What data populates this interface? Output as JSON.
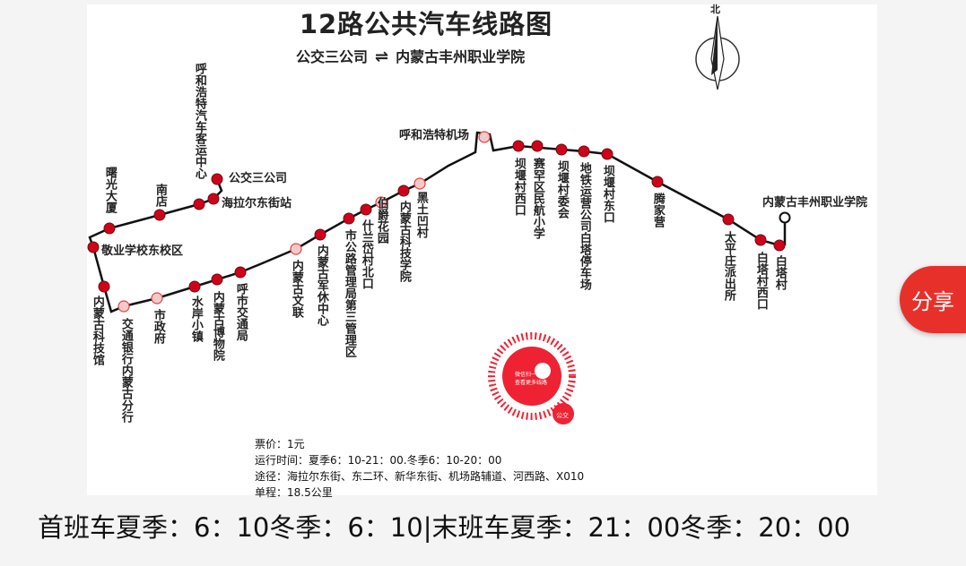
{
  "map": {
    "title": "12路公共汽车线路图",
    "from": "公交三公司",
    "to": "内蒙古丰州职业学院",
    "direction_symbol": "⇌",
    "north_label": "北",
    "line_color": "#111111",
    "station_color": "#d0021b",
    "stations": [
      "公交三公司",
      "海拉尔东街站",
      "呼和浩特汽车客运中心",
      "南店",
      "曙光大厦",
      "敬业学校东校区",
      "内蒙古科技馆",
      "交通银行内蒙古分行",
      "市政府",
      "水岸小镇",
      "内蒙古博物院",
      "呼市交通局",
      "内蒙古文联",
      "内蒙古军休中心",
      "市公路管理局第三管理区",
      "什兰岱村北口",
      "伯爵花园",
      "内蒙古科技学院",
      "黑土凹村",
      "呼和浩特机场",
      "坝堰村西口",
      "赛罕区民航小学",
      "坝堰村委会",
      "地铁运营公司白塔停车场",
      "坝堰村东口",
      "腾家营",
      "太平庄派出所",
      "白塔村西口",
      "白塔村",
      "内蒙古丰州职业学院"
    ],
    "info": {
      "fare": "票价：1元",
      "hours": "运行时间：夏季6：10-21：00.冬季6：10-20：00",
      "via": "途径：海拉尔东街、东二环、新华东街、机场路辅道、河西路、X010",
      "length": "单程：18.5公里"
    },
    "qr": {
      "line1": "微信扫一扫",
      "line2": "查看更多线路",
      "badge": "公交"
    }
  },
  "caption": "首班车夏季：6：10冬季：6：10|末班车夏季：21：00冬季：20：00",
  "share_button": "分享"
}
